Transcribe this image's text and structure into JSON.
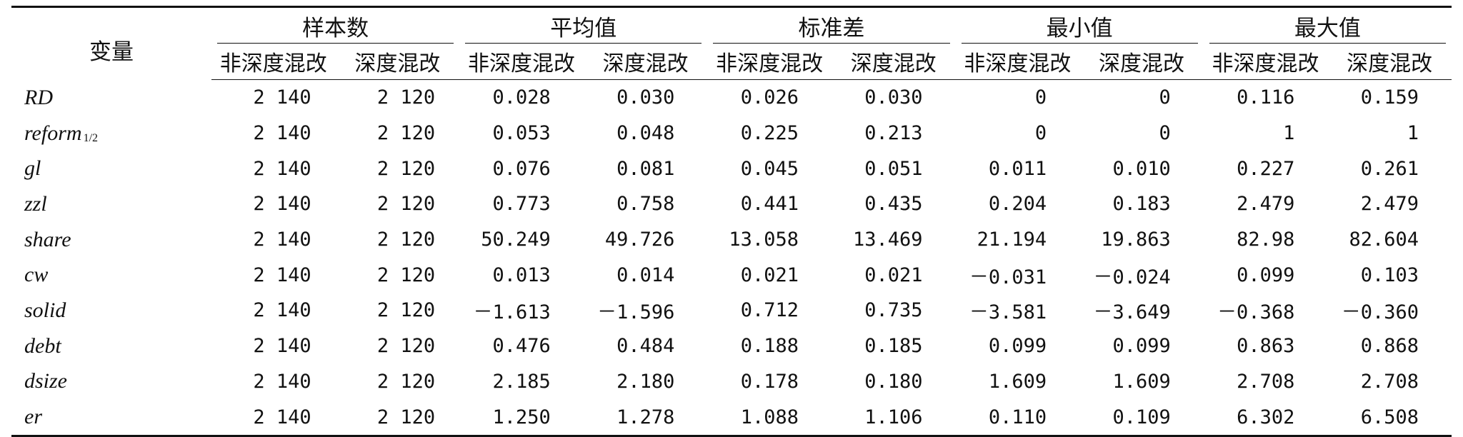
{
  "table": {
    "var_header": "变量",
    "groups": [
      "样本数",
      "平均值",
      "标准差",
      "最小值",
      "最大值"
    ],
    "subheaders": [
      "非深度混改",
      "深度混改"
    ],
    "rows": [
      {
        "var": "RD",
        "sub": "",
        "values": [
          "2 140",
          "2 120",
          "0.028",
          "0.030",
          "0.026",
          "0.030",
          "0",
          "0",
          "0.116",
          "0.159"
        ]
      },
      {
        "var": "reform",
        "sub": "1/2",
        "values": [
          "2 140",
          "2 120",
          "0.053",
          "0.048",
          "0.225",
          "0.213",
          "0",
          "0",
          "1",
          "1"
        ]
      },
      {
        "var": "gl",
        "sub": "",
        "values": [
          "2 140",
          "2 120",
          "0.076",
          "0.081",
          "0.045",
          "0.051",
          "0.011",
          "0.010",
          "0.227",
          "0.261"
        ]
      },
      {
        "var": "zzl",
        "sub": "",
        "values": [
          "2 140",
          "2 120",
          "0.773",
          "0.758",
          "0.441",
          "0.435",
          "0.204",
          "0.183",
          "2.479",
          "2.479"
        ]
      },
      {
        "var": "share",
        "sub": "",
        "values": [
          "2 140",
          "2 120",
          "50.249",
          "49.726",
          "13.058",
          "13.469",
          "21.194",
          "19.863",
          "82.98",
          "82.604"
        ]
      },
      {
        "var": "cw",
        "sub": "",
        "values": [
          "2 140",
          "2 120",
          "0.013",
          "0.014",
          "0.021",
          "0.021",
          "－0.031",
          "－0.024",
          "0.099",
          "0.103"
        ]
      },
      {
        "var": "solid",
        "sub": "",
        "values": [
          "2 140",
          "2 120",
          "－1.613",
          "－1.596",
          "0.712",
          "0.735",
          "－3.581",
          "－3.649",
          "－0.368",
          "－0.360"
        ]
      },
      {
        "var": "debt",
        "sub": "",
        "values": [
          "2 140",
          "2 120",
          "0.476",
          "0.484",
          "0.188",
          "0.185",
          "0.099",
          "0.099",
          "0.863",
          "0.868"
        ]
      },
      {
        "var": "dsize",
        "sub": "",
        "values": [
          "2 140",
          "2 120",
          "2.185",
          "2.180",
          "0.178",
          "0.180",
          "1.609",
          "1.609",
          "2.708",
          "2.708"
        ]
      },
      {
        "var": "er",
        "sub": "",
        "values": [
          "2 140",
          "2 120",
          "1.250",
          "1.278",
          "1.088",
          "1.106",
          "0.110",
          "0.109",
          "6.302",
          "6.508"
        ]
      }
    ]
  }
}
